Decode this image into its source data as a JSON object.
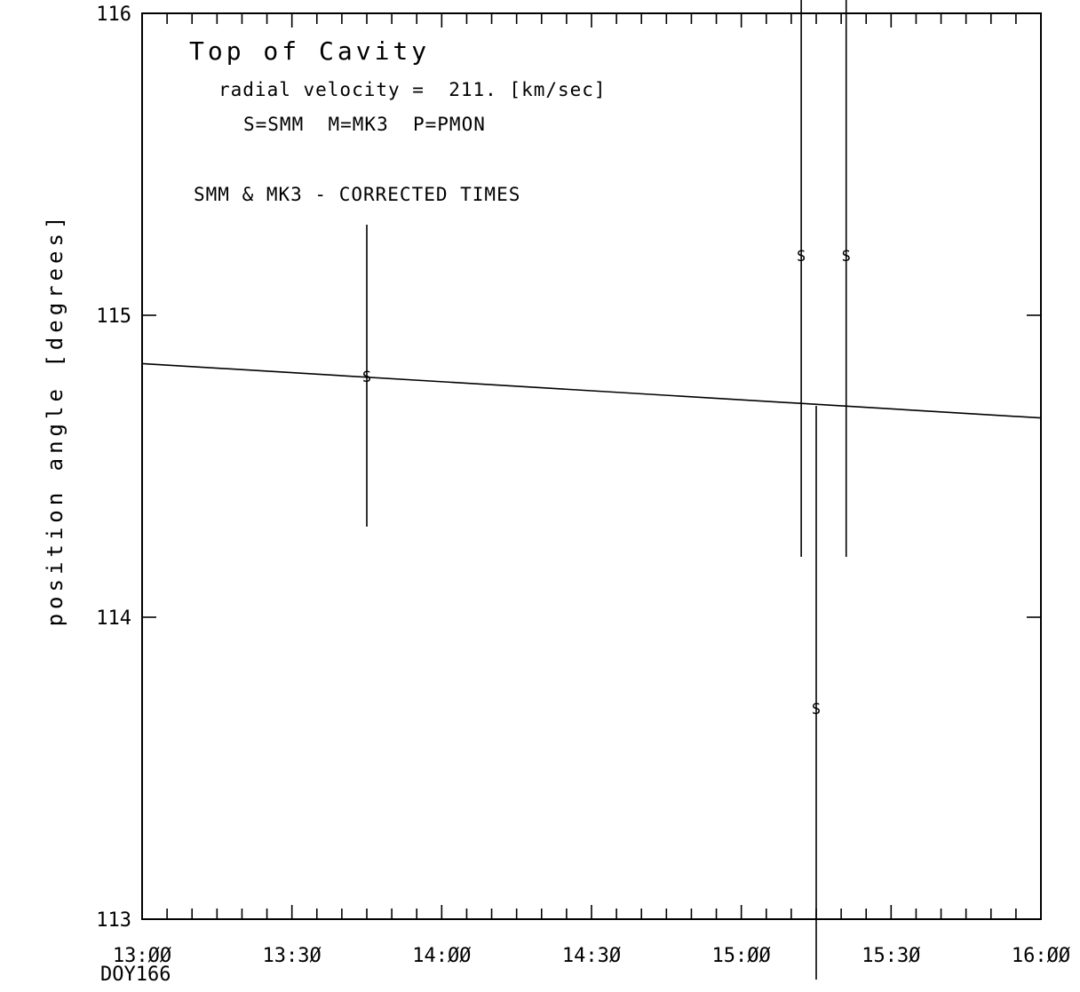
{
  "chart_data": {
    "type": "scatter",
    "title": "Top of Cavity",
    "annotations": [
      "radial velocity =  211. [km/sec]",
      "S=SMM  M=MK3  P=PMON",
      "SMM & MK3 - CORRECTED TIMES"
    ],
    "xlabel": "",
    "ylabel": "position angle [degrees]",
    "x_range_labels": [
      "13:00",
      "16:00"
    ],
    "xlim_hours": [
      13.0,
      16.0
    ],
    "ylim": [
      113,
      116
    ],
    "x_tick_labels": [
      "13:ØØ",
      "13:3Ø",
      "14:ØØ",
      "14:3Ø",
      "15:ØØ",
      "15:3Ø",
      "16:ØØ"
    ],
    "x_tick_sublabel": "DOY166",
    "y_tick_labels": [
      "113",
      "114",
      "115",
      "116"
    ],
    "y_ticks": [
      113,
      114,
      115,
      116
    ],
    "grid": false,
    "series": [
      {
        "marker": "S",
        "points": [
          {
            "time": "13:45",
            "x": 13.75,
            "y": 114.8,
            "err_low": 114.3,
            "err_high": 115.3
          },
          {
            "time": "15:12",
            "x": 15.2,
            "y": 115.2,
            "err_low": 114.2,
            "err_high": 116.05
          },
          {
            "time": "15:15",
            "x": 15.25,
            "y": 113.7,
            "err_low": 112.8,
            "err_high": 114.7
          },
          {
            "time": "15:21",
            "x": 15.35,
            "y": 115.2,
            "err_low": 114.2,
            "err_high": 116.05
          }
        ]
      }
    ],
    "fit_line": {
      "x": [
        13.0,
        16.0
      ],
      "y": [
        114.84,
        114.66
      ]
    }
  }
}
